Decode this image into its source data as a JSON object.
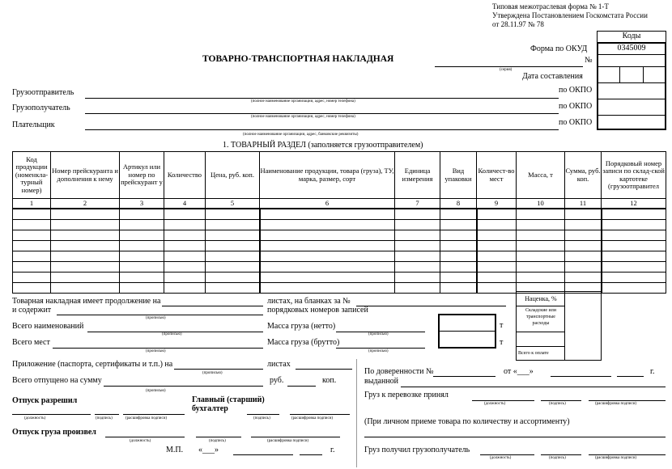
{
  "header": {
    "form_type": "Типовая межотраслевая форма № 1-Т",
    "approved": "Утверждена Постановлением Госкомстата России",
    "approved_date": "от 28.11.97 № 78"
  },
  "codes": {
    "title": "Коды",
    "okud_label": "Форма по ОКУД",
    "okud_value": "0345009",
    "number_label": "№",
    "date_label": "Дата составления",
    "okpo_label": "по ОКПО"
  },
  "title": "ТОВАРНО-ТРАНСПОРТНАЯ НАКЛАДНАЯ",
  "series_hint": "(серия)",
  "parties": [
    {
      "label": "Грузоотправитель",
      "hint": "(полное наименование организации, адрес, номер телефона)"
    },
    {
      "label": "Грузополучатель",
      "hint": "(полное наименование организации, адрес, номер телефона)"
    },
    {
      "label": "Плательщик",
      "hint": "(полное наименование организации, адрес, банковские реквизиты)"
    }
  ],
  "section_title": "1. ТОВАРНЫЙ РАЗДЕЛ (заполняется грузоотправителем)",
  "table": {
    "columns": [
      "Код продукции (номенкла-турный номер)",
      "Номер прейскуранта и дополнения к нему",
      "Артикул или номер по прейскурант у",
      "Количество",
      "Цена, руб. коп.",
      "Наименование продукции, товара (груза), ТУ, марка, размер, сорт",
      "Единица измерения",
      "Вид упаковки",
      "Количест-во мест",
      "Масса, т",
      "Сумма, руб. коп.",
      "Порядковый номер записи по склад-ской картотеке (грузоотправител"
    ],
    "numbers": [
      "1",
      "2",
      "3",
      "4",
      "5",
      "6",
      "7",
      "8",
      "9",
      "10",
      "11",
      "12"
    ]
  },
  "totals": {
    "markup": "Наценка, %",
    "expenses": "Складские или транспортные расходы",
    "total": "Всего к оплате"
  },
  "lower": {
    "continuation": "Товарная накладная имеет продолжение на",
    "sheets_blanks": "листах, на бланках за №",
    "contains": "и содержит",
    "record_numbers": "порядковых номеров записей",
    "in_words": "(прописью)",
    "total_items": "Всего наименований",
    "net_mass": "Масса груза (нетто)",
    "total_places": "Всего мест",
    "gross_mass": "Масса груза (брутто)",
    "ton": "т",
    "attachment": "Приложение (паспорта, сертификаты и т.п.) на",
    "sheets": "листах",
    "total_released": "Всего отпущено на сумму",
    "rub": "руб.",
    "kop": "коп.",
    "release_allowed": "Отпуск разрешил",
    "chief_accountant_1": "Главный (старший)",
    "chief_accountant_2": "бухгалтер",
    "position": "(должность)",
    "signature": "(подпись)",
    "signature_decode": "(расшифровка подписи)",
    "cargo_released": "Отпуск груза произвел",
    "stamp": "М.П.",
    "date_quote": "«___»",
    "year": "г.",
    "proxy": "По доверенности №",
    "from": "от «___»",
    "issued": "выданной",
    "accepted": "Груз к перевозке принял",
    "personal_note": "(При личном приеме товара по количеству и ассортименту)",
    "received": "Груз получил грузополучатель"
  }
}
